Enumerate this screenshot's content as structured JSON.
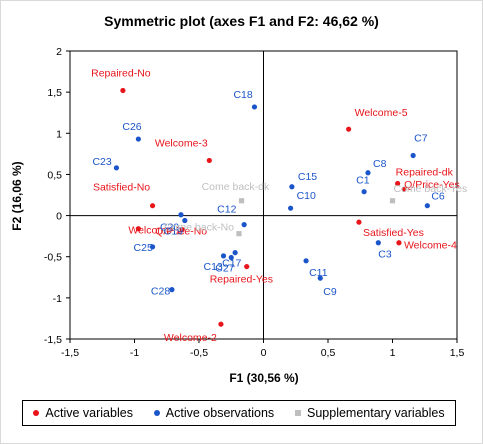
{
  "chart_data": {
    "type": "scatter",
    "title": "Symmetric plot (axes F1 and F2: 46,62 %)",
    "xlabel": "F1 (30,56 %)",
    "ylabel": "F2 (16,06 %)",
    "xlim": [
      -1.5,
      1.5
    ],
    "ylim": [
      -1.5,
      2
    ],
    "xticks": [
      "-1,5",
      "-1",
      "-0,5",
      "0",
      "0,5",
      "1",
      "1,5"
    ],
    "yticks": [
      "-1,5",
      "-1",
      "-0,5",
      "0",
      "0,5",
      "1",
      "1,5",
      "2"
    ],
    "xtick_values": [
      -1.5,
      -1,
      -0.5,
      0,
      0.5,
      1,
      1.5
    ],
    "ytick_values": [
      -1.5,
      -1,
      -0.5,
      0,
      0.5,
      1,
      1.5,
      2
    ],
    "legend_position": "bottom",
    "series": [
      {
        "name": "Active variables",
        "color": "#e8151b",
        "marker": "circle",
        "points": [
          {
            "label": "Repaired-No",
            "x": -1.09,
            "y": 1.52
          },
          {
            "label": "Welcome-3",
            "x": -0.42,
            "y": 0.67
          },
          {
            "label": "Satisfied-No",
            "x": -0.86,
            "y": 0.12
          },
          {
            "label": "Welcome-1",
            "x": -0.97,
            "y": -0.16
          },
          {
            "label": "Q/Price-No",
            "x": -0.63,
            "y": -0.17
          },
          {
            "label": "Repaired-Yes",
            "x": -0.13,
            "y": -0.62
          },
          {
            "label": "Welcome-2",
            "x": -0.33,
            "y": -1.32
          },
          {
            "label": "Welcome-5",
            "x": 0.66,
            "y": 1.05
          },
          {
            "label": "Repaired-dk",
            "x": 1.04,
            "y": 0.39
          },
          {
            "label": "Q/Price-Yes",
            "x": 1.09,
            "y": 0.32
          },
          {
            "label": "Satisfied-Yes",
            "x": 0.74,
            "y": -0.08
          },
          {
            "label": "Welcome-4",
            "x": 1.05,
            "y": -0.33
          }
        ]
      },
      {
        "name": "Active observations",
        "color": "#1a55c9",
        "marker": "circle",
        "points": [
          {
            "label": "C26",
            "x": -0.97,
            "y": 0.93
          },
          {
            "label": "C23",
            "x": -1.14,
            "y": 0.58
          },
          {
            "label": "C18",
            "x": -0.07,
            "y": 1.32
          },
          {
            "label": "C20",
            "x": -0.64,
            "y": 0.01
          },
          {
            "label": "C19",
            "x": -0.61,
            "y": -0.06
          },
          {
            "label": "C25",
            "x": -0.86,
            "y": -0.38
          },
          {
            "label": "C28",
            "x": -0.71,
            "y": -0.9
          },
          {
            "label": "C12",
            "x": -0.15,
            "y": -0.11
          },
          {
            "label": "C13",
            "x": -0.31,
            "y": -0.49
          },
          {
            "label": "C27",
            "x": -0.25,
            "y": -0.51
          },
          {
            "label": "C17",
            "x": -0.22,
            "y": -0.45
          },
          {
            "label": "C15",
            "x": 0.22,
            "y": 0.35
          },
          {
            "label": "C10",
            "x": 0.21,
            "y": 0.09
          },
          {
            "label": "C11",
            "x": 0.33,
            "y": -0.55
          },
          {
            "label": "C9",
            "x": 0.44,
            "y": -0.76
          },
          {
            "label": "C8",
            "x": 0.81,
            "y": 0.52
          },
          {
            "label": "C7",
            "x": 1.16,
            "y": 0.73
          },
          {
            "label": "C1",
            "x": 0.78,
            "y": 0.29
          },
          {
            "label": "C6",
            "x": 1.27,
            "y": 0.12
          },
          {
            "label": "C3",
            "x": 0.89,
            "y": -0.33
          }
        ]
      },
      {
        "name": "Supplementary variables",
        "color": "#bfbfbf",
        "marker": "square",
        "points": [
          {
            "label": "Come back-dk",
            "x": -0.17,
            "y": 0.18
          },
          {
            "label": "Come back-No",
            "x": -0.19,
            "y": -0.22
          },
          {
            "label": "Come back-Yes",
            "x": 1.0,
            "y": 0.18
          }
        ]
      }
    ]
  }
}
